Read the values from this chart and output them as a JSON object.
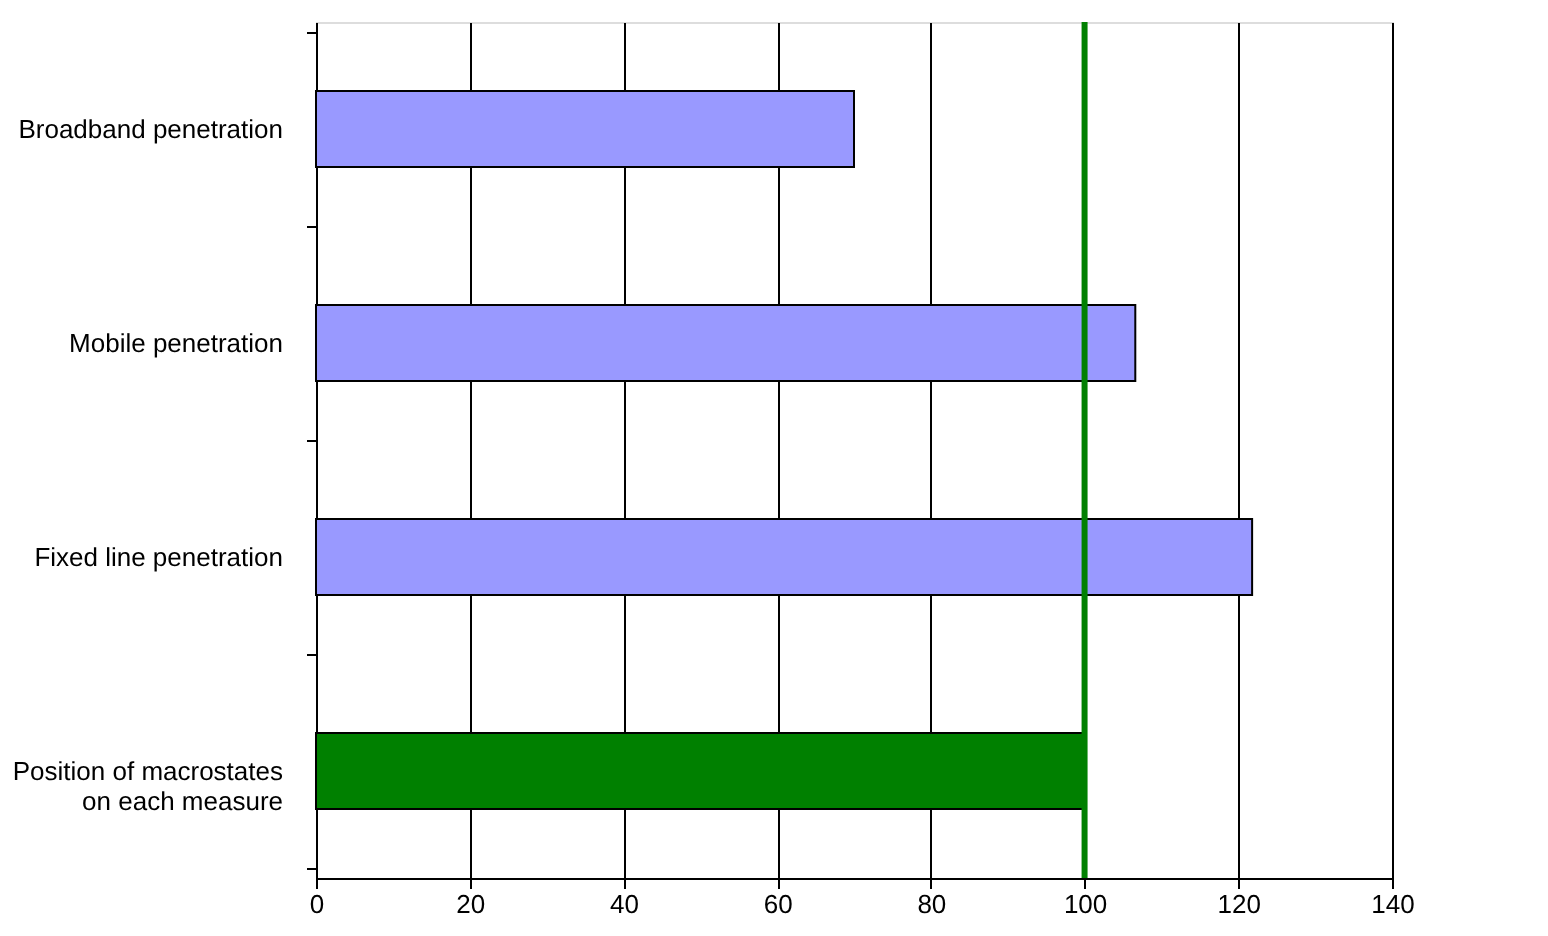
{
  "chart_data": {
    "type": "bar",
    "orientation": "horizontal",
    "categories": [
      "Broadband penetration",
      "Mobile penetration",
      "Fixed line penetration",
      "Position of macrostates on each measure"
    ],
    "values": [
      70,
      106.6,
      121.8,
      100
    ],
    "colors": [
      "#9999ff",
      "#9999ff",
      "#9999ff",
      "#008000"
    ],
    "xlim": [
      0,
      140
    ],
    "xticks": [
      0,
      20,
      40,
      60,
      80,
      100,
      120,
      140
    ],
    "grid": "x",
    "ref_lines": [
      {
        "axis": "x",
        "value": 100,
        "color": "#008000"
      }
    ]
  }
}
